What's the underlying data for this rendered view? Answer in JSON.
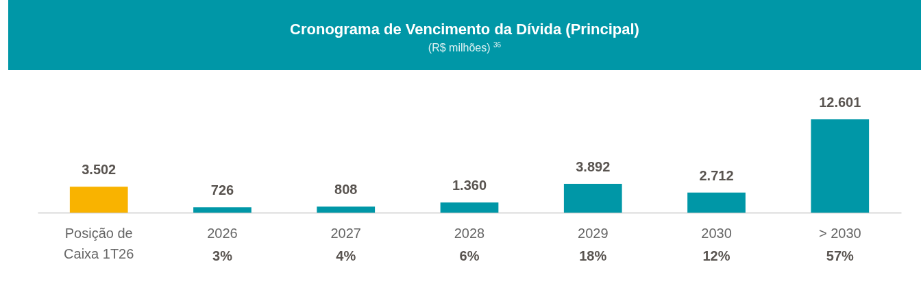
{
  "chart_data": {
    "type": "bar",
    "title": "Cronograma de Vencimento da Dívida (Principal)",
    "subtitle": "(R$ milhões) $^{36}$",
    "categories": [
      "Posição de\nCaixa 1T26",
      "2026",
      "2027",
      "2028",
      "2029",
      "2030",
      "> 2030"
    ],
    "values": [
      3502,
      726,
      808,
      1360,
      3892,
      2712,
      12601
    ],
    "colors": [
      "#f9b300",
      "#0097a7",
      "#0097a7",
      "#0097a7",
      "#0097a7",
      "#0097a7",
      "#0097a7"
    ],
    "value_labels": [
      "3.502",
      "726",
      "808",
      "1.360",
      "3.892",
      "2.712",
      "12.601"
    ],
    "annotations": [
      "3%",
      "4%",
      "6%",
      "18%",
      "12%",
      "57%"
    ],
    "grid": false
  }
}
